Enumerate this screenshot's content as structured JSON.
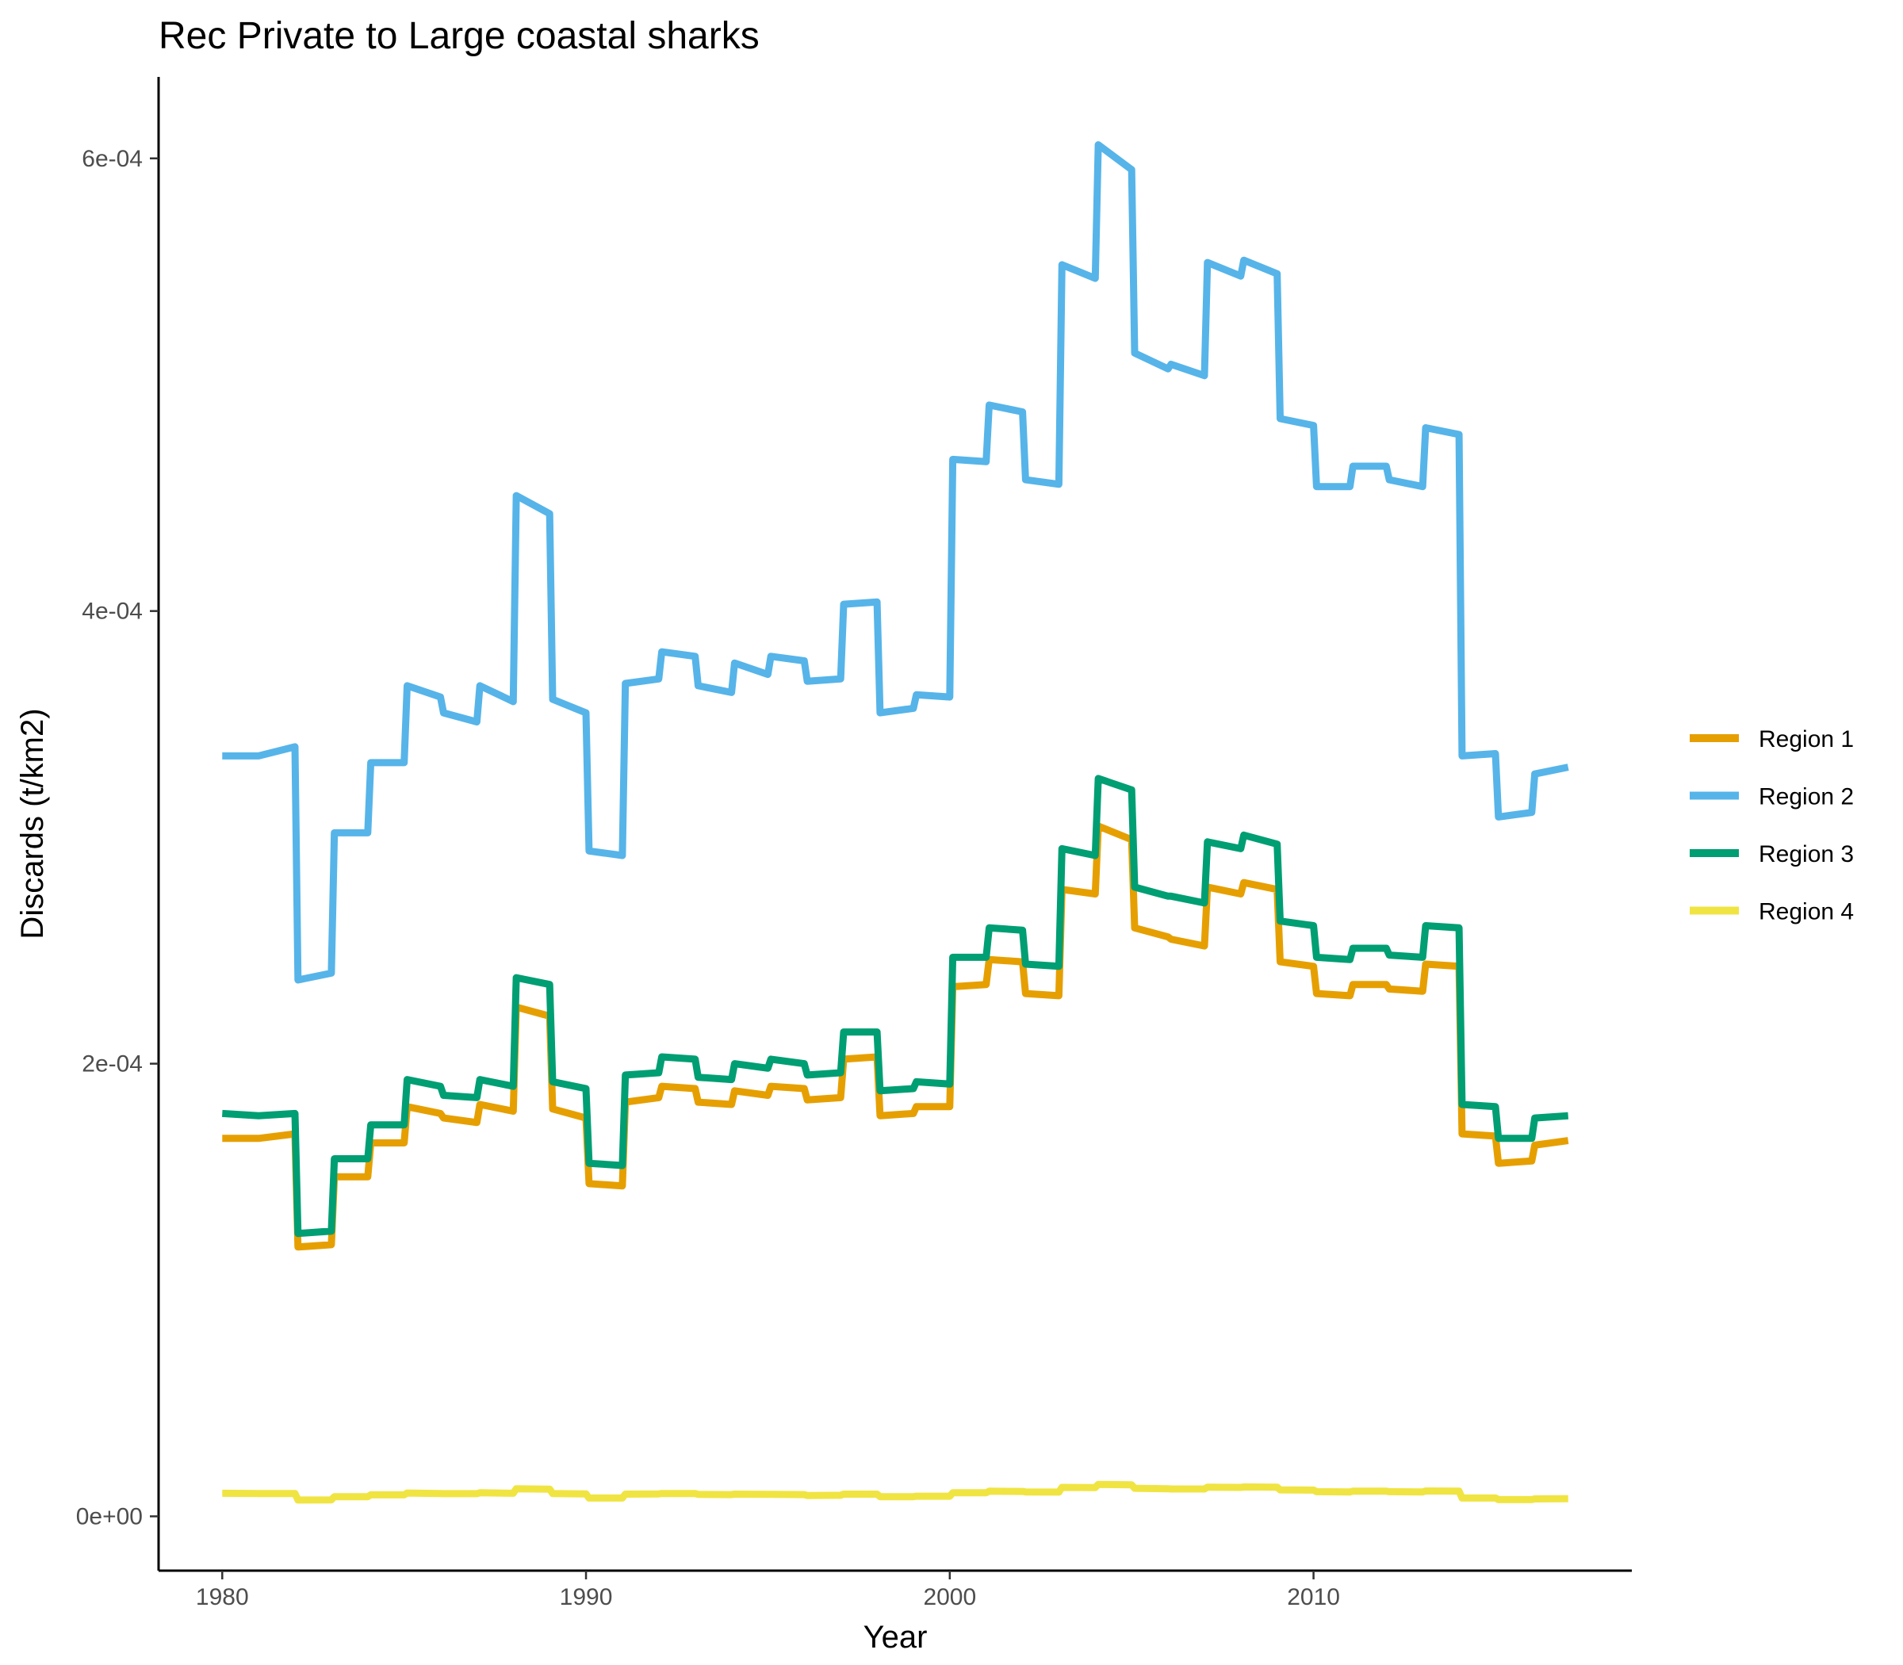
{
  "chart_data": {
    "type": "line",
    "title": "Rec Private to Large coastal sharks",
    "xlabel": "Year",
    "ylabel": "Discards (t/km2)",
    "xlim": [
      1978.25,
      2018.75
    ],
    "ylim": [
      -2.4e-05,
      0.000636
    ],
    "x_ticks": [
      1980,
      1990,
      2000,
      2010
    ],
    "x_tick_labels": [
      "1980",
      "1990",
      "2000",
      "2010"
    ],
    "y_ticks": [
      0,
      0.0002,
      0.0004,
      0.0006
    ],
    "y_tick_labels": [
      "0e+00",
      "2e-04",
      "4e-04",
      "6e-04"
    ],
    "grid": false,
    "legend_position": "right",
    "x": [
      1980.0,
      1981.0,
      1982.0,
      1982.083,
      1983.0,
      1983.083,
      1984.0,
      1984.083,
      1985.0,
      1985.083,
      1986.0,
      1986.083,
      1987.0,
      1987.083,
      1988.0,
      1988.083,
      1989.0,
      1989.083,
      1990.0,
      1990.083,
      1991.0,
      1991.083,
      1992.0,
      1992.083,
      1993.0,
      1993.083,
      1994.0,
      1994.083,
      1995.0,
      1995.083,
      1996.0,
      1996.083,
      1997.0,
      1997.083,
      1998.0,
      1998.083,
      1999.0,
      1999.083,
      2000.0,
      2000.083,
      2001.0,
      2001.083,
      2002.0,
      2002.083,
      2003.0,
      2003.083,
      2004.0,
      2004.083,
      2005.0,
      2005.083,
      2006.0,
      2006.083,
      2007.0,
      2007.083,
      2008.0,
      2008.083,
      2009.0,
      2009.083,
      2010.0,
      2010.083,
      2011.0,
      2011.083,
      2012.0,
      2012.083,
      2013.0,
      2013.083,
      2014.0,
      2014.083,
      2015.0,
      2015.083,
      2016.0,
      2016.083,
      2017.0
    ],
    "series": [
      {
        "name": "Region 1",
        "color": "#E69F00",
        "values": [
          0.000167,
          0.000167,
          0.000169,
          0.000119,
          0.00012,
          0.00015,
          0.00015,
          0.000165,
          0.000165,
          0.000181,
          0.000178,
          0.000176,
          0.000174,
          0.000182,
          0.000179,
          0.000225,
          0.000221,
          0.00018,
          0.000176,
          0.000147,
          0.000146,
          0.000183,
          0.000185,
          0.00019,
          0.000189,
          0.000183,
          0.000182,
          0.000188,
          0.000186,
          0.00019,
          0.000189,
          0.000184,
          0.000185,
          0.000202,
          0.000203,
          0.000177,
          0.000178,
          0.000181,
          0.000181,
          0.000234,
          0.000235,
          0.000246,
          0.000245,
          0.000231,
          0.00023,
          0.000277,
          0.000275,
          0.000305,
          0.000299,
          0.00026,
          0.000256,
          0.000255,
          0.000252,
          0.000278,
          0.000275,
          0.00028,
          0.000277,
          0.000245,
          0.000243,
          0.000231,
          0.00023,
          0.000235,
          0.000235,
          0.000233,
          0.000232,
          0.000244,
          0.000243,
          0.000169,
          0.000168,
          0.000156,
          0.000157,
          0.000164,
          0.000166
        ]
      },
      {
        "name": "Region 2",
        "color": "#56B4E9",
        "values": [
          0.000336,
          0.000336,
          0.00034,
          0.000237,
          0.00024,
          0.000302,
          0.000302,
          0.000333,
          0.000333,
          0.000367,
          0.000362,
          0.000355,
          0.000351,
          0.000367,
          0.00036,
          0.000451,
          0.000443,
          0.000361,
          0.000355,
          0.000294,
          0.000292,
          0.000368,
          0.00037,
          0.000382,
          0.00038,
          0.000367,
          0.000364,
          0.000377,
          0.000372,
          0.00038,
          0.000378,
          0.000369,
          0.00037,
          0.000403,
          0.000404,
          0.000355,
          0.000357,
          0.000363,
          0.000362,
          0.000467,
          0.000466,
          0.000491,
          0.000488,
          0.000458,
          0.000456,
          0.000553,
          0.000547,
          0.000606,
          0.000595,
          0.000514,
          0.000507,
          0.000509,
          0.000504,
          0.000554,
          0.000548,
          0.000555,
          0.000549,
          0.000485,
          0.000482,
          0.000455,
          0.000455,
          0.000464,
          0.000464,
          0.000458,
          0.000455,
          0.000481,
          0.000478,
          0.000336,
          0.000337,
          0.000309,
          0.000311,
          0.000328,
          0.000331
        ]
      },
      {
        "name": "Region 3",
        "color": "#009E73",
        "values": [
          0.000178,
          0.000177,
          0.000178,
          0.000125,
          0.000126,
          0.000158,
          0.000158,
          0.000173,
          0.000173,
          0.000193,
          0.00019,
          0.000186,
          0.000185,
          0.000193,
          0.00019,
          0.000238,
          0.000235,
          0.000192,
          0.000189,
          0.000156,
          0.000155,
          0.000195,
          0.000196,
          0.000203,
          0.000202,
          0.000194,
          0.000193,
          0.0002,
          0.000198,
          0.000202,
          0.0002,
          0.000195,
          0.000196,
          0.000214,
          0.000214,
          0.000188,
          0.000189,
          0.000192,
          0.000191,
          0.000247,
          0.000247,
          0.00026,
          0.000259,
          0.000244,
          0.000243,
          0.000295,
          0.000292,
          0.000326,
          0.000321,
          0.000278,
          0.000274,
          0.000274,
          0.000271,
          0.000298,
          0.000295,
          0.000301,
          0.000297,
          0.000263,
          0.000261,
          0.000247,
          0.000246,
          0.000251,
          0.000251,
          0.000248,
          0.000247,
          0.000261,
          0.00026,
          0.000182,
          0.000181,
          0.000167,
          0.000167,
          0.000176,
          0.000177
        ]
      },
      {
        "name": "Region 4",
        "color": "#F0E442",
        "values": [
          1.02e-05,
          1.01e-05,
          1.01e-05,
          7.2e-06,
          7.3e-06,
          8.7e-06,
          8.7e-06,
          9.5e-06,
          9.5e-06,
          1.03e-05,
          1.01e-05,
          1e-05,
          1e-05,
          1.04e-05,
          1.02e-05,
          1.22e-05,
          1.2e-05,
          1.01e-05,
          9.9e-06,
          8.1e-06,
          8.1e-06,
          9.8e-06,
          9.9e-06,
          1.01e-05,
          1.01e-05,
          9.7e-06,
          9.6e-06,
          9.8e-06,
          9.7e-06,
          9.7e-06,
          9.6e-06,
          9.2e-06,
          9.3e-06,
          9.8e-06,
          9.8e-06,
          8.7e-06,
          8.7e-06,
          8.9e-06,
          8.9e-06,
          1.04e-05,
          1.04e-05,
          1.11e-05,
          1.1e-05,
          1.08e-05,
          1.07e-05,
          1.28e-05,
          1.27e-05,
          1.41e-05,
          1.39e-05,
          1.24e-05,
          1.22e-05,
          1.21e-05,
          1.21e-05,
          1.29e-05,
          1.28e-05,
          1.3e-05,
          1.29e-05,
          1.17e-05,
          1.16e-05,
          1.09e-05,
          1.08e-05,
          1.11e-05,
          1.11e-05,
          1.09e-05,
          1.08e-05,
          1.12e-05,
          1.11e-05,
          8.1e-06,
          8.1e-06,
          7.4e-06,
          7.4e-06,
          7.7e-06,
          7.8e-06
        ]
      }
    ]
  }
}
